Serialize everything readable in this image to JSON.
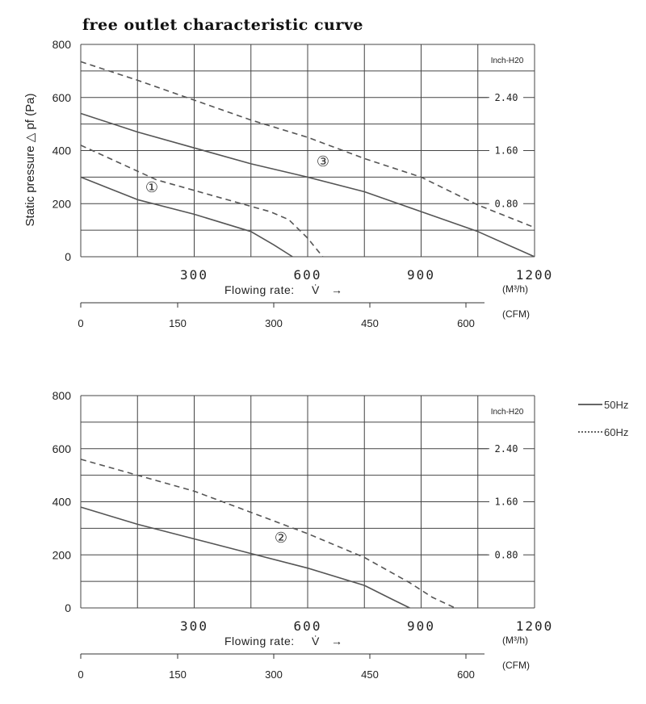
{
  "title": "free outlet characteristic curve",
  "ylabel": "Static pressure △ pf (Pa)",
  "xlabel": "Flowing rate:",
  "xlabel_symbol": "V̇",
  "xlabel_arrow": "→",
  "x_unit": "(M³/h)",
  "cfm_unit": "(CFM)",
  "inch_unit": "Inch-H20",
  "legend": [
    {
      "label": "50Hz",
      "style": "solid"
    },
    {
      "label": "60Hz",
      "style": "dashed"
    }
  ],
  "chart_data": [
    {
      "type": "line",
      "xlim": [
        0,
        1200
      ],
      "ylim": [
        0,
        800
      ],
      "yticks": [
        0,
        200,
        400,
        600,
        800
      ],
      "xticks": [
        300,
        600,
        900,
        1200
      ],
      "xtick_labels": [
        "300",
        "600",
        "900",
        "1200"
      ],
      "cfm_ticks": [
        "0",
        "150",
        "300",
        "450",
        "600"
      ],
      "inch_ticks": [
        "2.40",
        "1.60",
        "0.80"
      ],
      "series": [
        {
          "marker": "①",
          "style": "solid",
          "x": [
            0,
            150,
            300,
            450,
            510,
            560
          ],
          "y": [
            300,
            215,
            160,
            95,
            45,
            0
          ]
        },
        {
          "style": "dashed",
          "x": [
            0,
            200,
            400,
            500,
            550,
            600,
            640
          ],
          "y": [
            420,
            290,
            210,
            170,
            140,
            70,
            0
          ]
        },
        {
          "marker": "③",
          "style": "solid",
          "x": [
            0,
            150,
            300,
            450,
            600,
            750,
            900,
            1050,
            1200
          ],
          "y": [
            540,
            470,
            410,
            350,
            300,
            245,
            170,
            95,
            0
          ]
        },
        {
          "style": "dashed",
          "x": [
            0,
            150,
            300,
            450,
            600,
            750,
            900,
            1050,
            1200
          ],
          "y": [
            735,
            665,
            590,
            515,
            450,
            370,
            300,
            195,
            110
          ]
        }
      ]
    },
    {
      "type": "line",
      "xlim": [
        0,
        1200
      ],
      "ylim": [
        0,
        800
      ],
      "yticks": [
        0,
        200,
        400,
        600,
        800
      ],
      "xticks": [
        300,
        600,
        900,
        1200
      ],
      "xtick_labels": [
        "300",
        "600",
        "900",
        "1200"
      ],
      "cfm_ticks": [
        "0",
        "150",
        "300",
        "450",
        "600"
      ],
      "inch_ticks": [
        "2.40",
        "1.60",
        "0.80"
      ],
      "series": [
        {
          "marker": "②",
          "style": "solid",
          "x": [
            0,
            150,
            300,
            450,
            600,
            750,
            820,
            870
          ],
          "y": [
            380,
            315,
            260,
            205,
            150,
            85,
            35,
            0
          ]
        },
        {
          "style": "dashed",
          "x": [
            0,
            150,
            300,
            450,
            600,
            750,
            870,
            930,
            990
          ],
          "y": [
            560,
            500,
            440,
            360,
            280,
            190,
            95,
            40,
            0
          ]
        }
      ]
    }
  ]
}
